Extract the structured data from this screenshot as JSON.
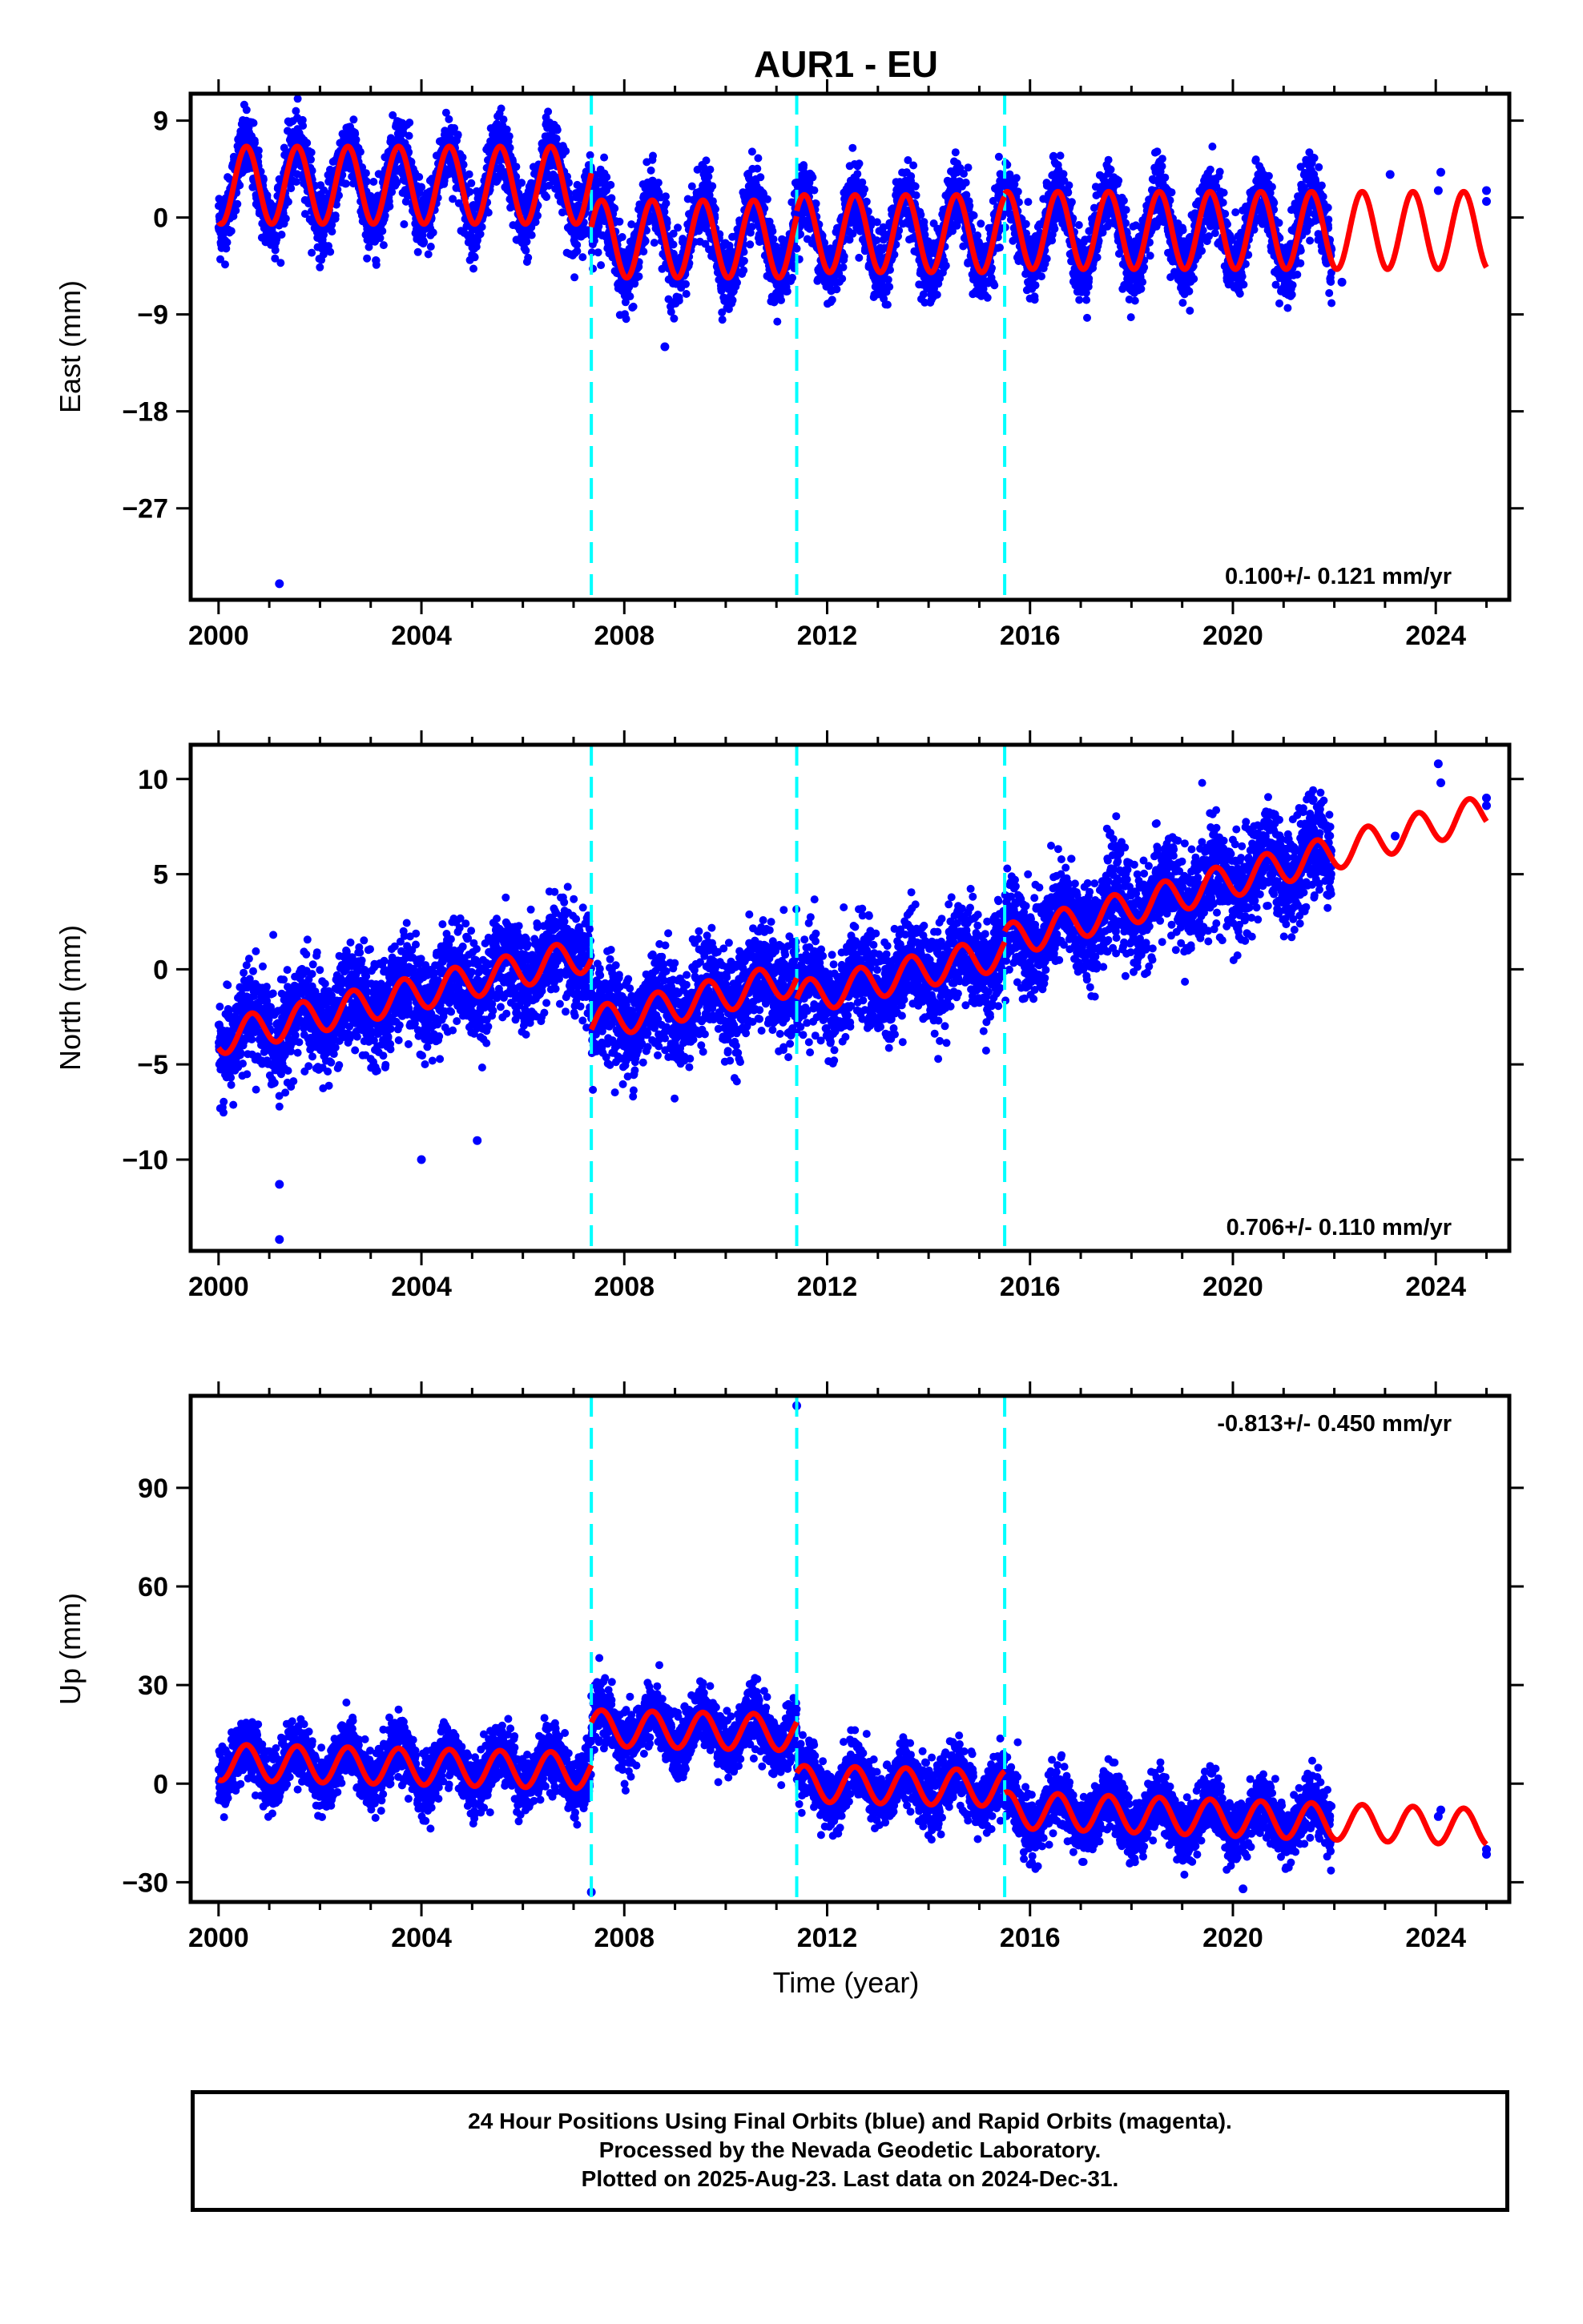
{
  "title": "AUR1 - EU",
  "colors": {
    "data": "#0000ff",
    "model": "#ff0000",
    "offset": "#00ffff",
    "frame": "#000000"
  },
  "xlabel": "Time (year)",
  "xticks": [
    "2000",
    "2004",
    "2008",
    "2012",
    "2016",
    "2020",
    "2024"
  ],
  "footer": {
    "line1": "24 Hour Positions Using Final Orbits (blue) and Rapid Orbits (magenta).",
    "line2": "Processed by the Nevada Geodetic Laboratory.",
    "line3": "Plotted on 2025-Aug-23. Last data on 2024-Dec-31."
  },
  "chart_data": [
    {
      "type": "scatter",
      "component": "east",
      "ylabel": "East (mm)",
      "rate_label": "0.100+/- 0.121 mm/yr",
      "rate_position": "bottom-right",
      "xlim": [
        1999.45,
        2025.45
      ],
      "ylim": [
        -35.5,
        11.5
      ],
      "yticks": [
        9,
        0,
        -9,
        -18,
        -27
      ],
      "ytick_labels": [
        "9",
        "0",
        "−9",
        "−18",
        "−27"
      ],
      "offset_years": [
        2007.35,
        2011.4,
        2015.5
      ],
      "data_end_main": 2021.95,
      "sparse_points": [
        [
          2022.15,
          -6.0
        ],
        [
          2023.1,
          4.0
        ],
        [
          2024.05,
          2.5
        ],
        [
          2024.1,
          4.2
        ],
        [
          2025.0,
          1.5
        ],
        [
          2025.0,
          2.5
        ]
      ],
      "outliers": [
        [
          2001.2,
          -34.0
        ],
        [
          2008.8,
          -12.0
        ]
      ],
      "model": {
        "segments": [
          {
            "start": 2000.0,
            "end": 2007.35,
            "offset": 3.0,
            "rate": 0.0
          },
          {
            "start": 2007.35,
            "end": 2011.4,
            "offset": -2.0,
            "rate": 0.0
          },
          {
            "start": 2011.4,
            "end": 2015.5,
            "offset": -1.5,
            "rate": 0.0
          },
          {
            "start": 2015.5,
            "end": 2025.0,
            "offset": -1.2,
            "rate": 0.0
          }
        ],
        "annual_amplitude": 3.6,
        "annual_peak_phase": 0.55,
        "scatter_sigma": 1.6
      }
    },
    {
      "type": "scatter",
      "component": "north",
      "ylabel": "North (mm)",
      "rate_label": "0.706+/- 0.110 mm/yr",
      "rate_position": "bottom-right",
      "xlim": [
        1999.45,
        2025.45
      ],
      "ylim": [
        -14.8,
        11.8
      ],
      "yticks": [
        10,
        5,
        0,
        -5,
        -10
      ],
      "ytick_labels": [
        "10",
        "5",
        "0",
        "−5",
        "−10"
      ],
      "offset_years": [
        2007.35,
        2011.4,
        2015.5
      ],
      "data_end_main": 2021.95,
      "sparse_points": [
        [
          2023.2,
          7.0
        ],
        [
          2024.05,
          10.8
        ],
        [
          2024.1,
          9.8
        ],
        [
          2025.0,
          9.0
        ],
        [
          2025.0,
          8.6
        ]
      ],
      "outliers": [
        [
          2001.2,
          -14.2
        ],
        [
          2001.2,
          -11.3
        ],
        [
          2004.0,
          -10.0
        ],
        [
          2005.1,
          -9.0
        ]
      ],
      "model": {
        "segments": [
          {
            "start": 2000.0,
            "end": 2007.35,
            "offset": -3.6,
            "rate": 0.6
          },
          {
            "start": 2007.35,
            "end": 2011.4,
            "offset": -7.3,
            "rate": 0.6
          },
          {
            "start": 2011.4,
            "end": 2015.5,
            "offset": -8.4,
            "rate": 0.6
          },
          {
            "start": 2015.5,
            "end": 2025.0,
            "offset": -9.7,
            "rate": 0.72
          }
        ],
        "annual_amplitude": 0.9,
        "annual_peak_phase": 0.65,
        "scatter_sigma": 1.3
      }
    },
    {
      "type": "scatter",
      "component": "up",
      "ylabel": "Up (mm)",
      "rate_label": "-0.813+/- 0.450 mm/yr",
      "rate_position": "top-right",
      "xlim": [
        1999.45,
        2025.45
      ],
      "ylim": [
        -36,
        118
      ],
      "yticks": [
        90,
        60,
        30,
        0,
        -30
      ],
      "ytick_labels": [
        "90",
        "60",
        "30",
        "0",
        "−30"
      ],
      "offset_years": [
        2007.35,
        2011.4,
        2015.5
      ],
      "data_end_main": 2021.95,
      "sparse_points": [
        [
          2024.05,
          -10.0
        ],
        [
          2024.1,
          -8.0
        ],
        [
          2025.0,
          -20.0
        ],
        [
          2025.0,
          -21.5
        ]
      ],
      "outliers": [
        [
          2011.4,
          115.0
        ],
        [
          2007.35,
          -33.0
        ],
        [
          2020.2,
          -32.0
        ]
      ],
      "model": {
        "segments": [
          {
            "start": 2000.0,
            "end": 2007.35,
            "offset": 6.5,
            "rate": -0.35
          },
          {
            "start": 2007.35,
            "end": 2011.4,
            "offset": 19.5,
            "rate": -0.35
          },
          {
            "start": 2011.4,
            "end": 2015.5,
            "offset": 4.0,
            "rate": -0.35
          },
          {
            "start": 2015.5,
            "end": 2025.0,
            "offset": 0.5,
            "rate": -0.55
          }
        ],
        "annual_amplitude": 5.5,
        "annual_peak_phase": 0.55,
        "scatter_sigma": 4.5
      }
    }
  ]
}
